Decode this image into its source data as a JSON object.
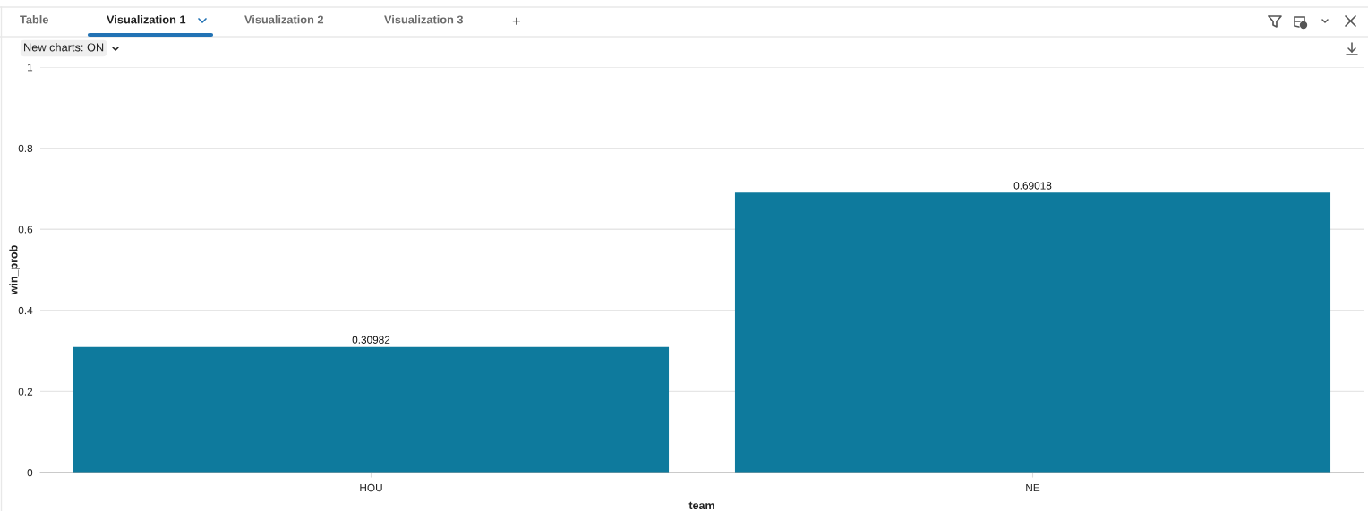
{
  "chart_data": {
    "type": "bar",
    "categories": [
      "HOU",
      "NE"
    ],
    "values": [
      0.30982,
      0.69018
    ],
    "color": "#0e7a9d",
    "xlabel": "team",
    "ylabel": "win_prob",
    "ylim": [
      0,
      1
    ],
    "yticks": [
      0,
      0.2,
      0.4,
      0.6,
      0.8,
      1
    ],
    "grid": "y",
    "data_labels": true,
    "annotations": [
      "Table",
      "Visualization 1",
      "Visualization 2",
      "Visualization 3",
      "+",
      "New charts: ON"
    ]
  }
}
